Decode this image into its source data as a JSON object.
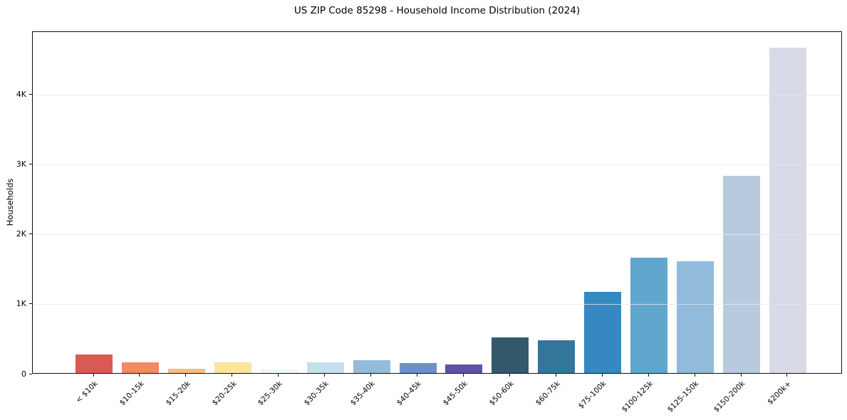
{
  "chart_data": {
    "type": "bar",
    "title": "US ZIP Code 85298 - Household Income Distribution (2024)",
    "xlabel": "",
    "ylabel": "Households",
    "categories": [
      "< $10k",
      "$10-15k",
      "$15-20k",
      "$20-25k",
      "$25-30k",
      "$30-35k",
      "$35-40k",
      "$40-45k",
      "$45-50k",
      "$50-60k",
      "$60-75k",
      "$75-100k",
      "$100-125k",
      "$125-150k",
      "$150-200k",
      "$200k+"
    ],
    "values": [
      270,
      155,
      65,
      155,
      50,
      155,
      180,
      140,
      125,
      510,
      470,
      1160,
      1650,
      1600,
      2820,
      4660
    ],
    "bar_colors": [
      "#d95a52",
      "#f28a64",
      "#f8bc7e",
      "#fae49e",
      "#ebf7f1",
      "#c3e0ec",
      "#92bcd9",
      "#6b90ca",
      "#5b53a8",
      "#34596c",
      "#33769c",
      "#3588c0",
      "#5fa7cd",
      "#91badb",
      "#b8cade",
      "#d8dae8"
    ],
    "ylim": [
      0,
      4900
    ],
    "yticks": [
      {
        "value": 0,
        "label": "0"
      },
      {
        "value": 1000,
        "label": "1K"
      },
      {
        "value": 2000,
        "label": "2K"
      },
      {
        "value": 3000,
        "label": "3K"
      },
      {
        "value": 4000,
        "label": "4K"
      }
    ],
    "grid": "horizontal",
    "legend": "none",
    "plot_background": "#ffffff",
    "spine_color": "#111111",
    "gridline_color": "#e9e9e9",
    "text_color": "#000000"
  }
}
